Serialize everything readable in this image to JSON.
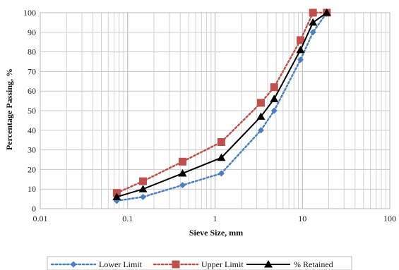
{
  "chart_data": {
    "type": "line",
    "title": "",
    "xlabel": "Sieve Size, mm",
    "ylabel": "Percentage Passing, %",
    "x_scale": "log",
    "xlim": [
      0.01,
      100
    ],
    "ylim": [
      0,
      100
    ],
    "x_ticks": [
      0.01,
      0.1,
      1,
      10,
      100
    ],
    "x_tick_labels": [
      "0.01",
      "0.1",
      "1",
      "10",
      "100"
    ],
    "y_ticks": [
      0,
      10,
      20,
      30,
      40,
      50,
      60,
      70,
      80,
      90,
      100
    ],
    "y_tick_labels": [
      "0",
      "10",
      "20",
      "30",
      "40",
      "50",
      "60",
      "70",
      "80",
      "90",
      "100"
    ],
    "grid": true,
    "legend": "bottom",
    "series": [
      {
        "name": "Lower Limit",
        "color": "#4a7fc1",
        "line_style": "dotted",
        "marker": "diamond",
        "x": [
          0.075,
          0.15,
          0.425,
          1.18,
          3.35,
          4.75,
          9.5,
          13.2,
          19
        ],
        "y": [
          4,
          6,
          12,
          18,
          40,
          50,
          76,
          90,
          100
        ]
      },
      {
        "name": "Upper Limit",
        "color": "#c0504d",
        "line_style": "dotted",
        "marker": "square",
        "x": [
          0.075,
          0.15,
          0.425,
          1.18,
          3.35,
          4.75,
          9.5,
          13.2,
          19
        ],
        "y": [
          8,
          14,
          24,
          34,
          54,
          62,
          86,
          100,
          100
        ]
      },
      {
        "name": "% Retained",
        "color": "#000000",
        "line_style": "solid",
        "marker": "triangle",
        "x": [
          0.075,
          0.15,
          0.425,
          1.18,
          3.35,
          4.75,
          9.5,
          13.2,
          19
        ],
        "y": [
          6,
          10,
          18,
          26,
          47,
          56,
          81,
          95,
          100
        ]
      }
    ]
  }
}
